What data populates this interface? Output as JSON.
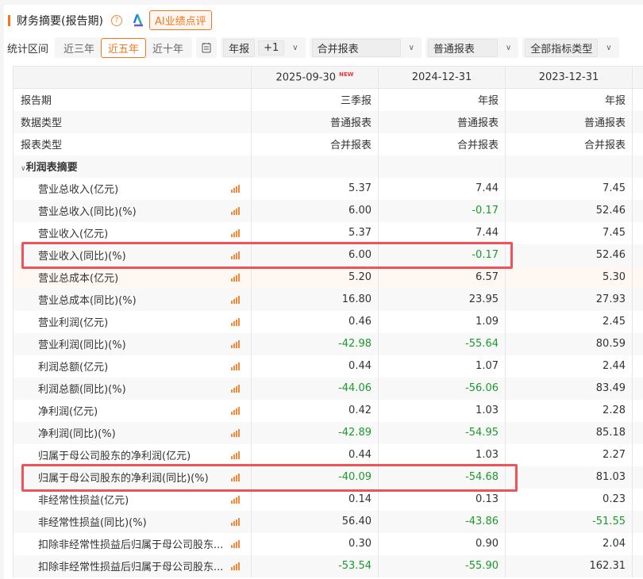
{
  "header": {
    "title": "财务摘要(报告期)",
    "help_icon": "question-icon",
    "ai_button": "AI业绩点评"
  },
  "filters": {
    "label": "统计区间",
    "ranges": [
      "近三年",
      "近五年",
      "近十年"
    ],
    "active_range": "近五年",
    "period": "年报",
    "offset": "+1",
    "report_scope": "合并报表",
    "report_type": "普通报表",
    "indicator_type": "全部指标类型"
  },
  "table": {
    "columns": [
      "2025-09-30",
      "2024-12-31",
      "2023-12-31"
    ],
    "new_badge": "NEW",
    "meta_rows": [
      {
        "label": "报告期",
        "values": [
          "三季报",
          "年报",
          "年报"
        ]
      },
      {
        "label": "数据类型",
        "values": [
          "普通报表",
          "普通报表",
          "普通报表"
        ]
      },
      {
        "label": "报表类型",
        "values": [
          "合并报表",
          "合并报表",
          "合并报表"
        ]
      }
    ],
    "section": "利润表摘要",
    "rows": [
      {
        "label": "营业总收入(亿元)",
        "values": [
          "5.37",
          "7.44",
          "7.45"
        ]
      },
      {
        "label": "营业总收入(同比)(%)",
        "values": [
          "6.00",
          "-0.17",
          "52.46"
        ]
      },
      {
        "label": "营业收入(亿元)",
        "values": [
          "5.37",
          "7.44",
          "7.45"
        ]
      },
      {
        "label": "营业收入(同比)(%)",
        "values": [
          "6.00",
          "-0.17",
          "52.46"
        ],
        "highlighted": true
      },
      {
        "label": "营业总成本(亿元)",
        "values": [
          "5.20",
          "6.57",
          "5.30"
        ]
      },
      {
        "label": "营业总成本(同比)(%)",
        "values": [
          "16.80",
          "23.95",
          "27.93"
        ]
      },
      {
        "label": "营业利润(亿元)",
        "values": [
          "0.46",
          "1.09",
          "2.45"
        ]
      },
      {
        "label": "营业利润(同比)(%)",
        "values": [
          "-42.98",
          "-55.64",
          "80.59"
        ]
      },
      {
        "label": "利润总额(亿元)",
        "values": [
          "0.44",
          "1.07",
          "2.44"
        ]
      },
      {
        "label": "利润总额(同比)(%)",
        "values": [
          "-44.06",
          "-56.06",
          "83.49"
        ]
      },
      {
        "label": "净利润(亿元)",
        "values": [
          "0.42",
          "1.03",
          "2.28"
        ]
      },
      {
        "label": "净利润(同比)(%)",
        "values": [
          "-42.89",
          "-54.95",
          "85.18"
        ]
      },
      {
        "label": "归属于母公司股东的净利润(亿元)",
        "values": [
          "0.44",
          "1.03",
          "2.27"
        ]
      },
      {
        "label": "归属于母公司股东的净利润(同比)(%)",
        "values": [
          "-40.09",
          "-54.68",
          "81.03"
        ],
        "highlighted": true
      },
      {
        "label": "非经常性损益(亿元)",
        "values": [
          "0.14",
          "0.13",
          "0.23"
        ]
      },
      {
        "label": "非经常性损益(同比)(%)",
        "values": [
          "56.40",
          "-43.86",
          "-51.55"
        ]
      },
      {
        "label": "扣除非经常性损益后归属于母公司股东...",
        "values": [
          "0.30",
          "0.90",
          "2.04"
        ]
      },
      {
        "label": "扣除非经常性损益后归属于母公司股东...",
        "values": [
          "-53.54",
          "-55.90",
          "162.31"
        ]
      }
    ]
  },
  "colors": {
    "accent": "#f5761f",
    "negative": "#1a9a2b",
    "highlight_box": "#f0525a"
  }
}
